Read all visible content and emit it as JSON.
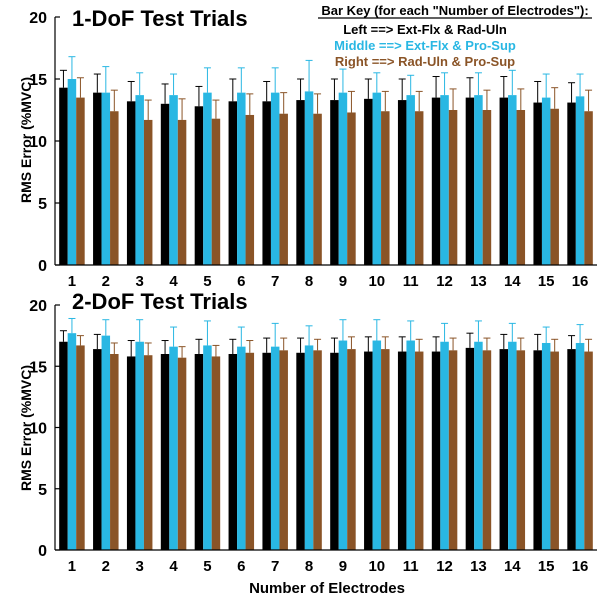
{
  "figure": {
    "bar_key": {
      "title": "Bar Key (for each \"Number of Electrodes\"):",
      "entries": [
        {
          "text": "Left ==> Ext-Flx & Rad-Uln",
          "color": "#000000"
        },
        {
          "text": "Middle ==> Ext-Flx & Pro-Sup",
          "color": "#29b7e3"
        },
        {
          "text": "Right ==> Rad-Uln & Pro-Sup",
          "color": "#8a5427"
        }
      ]
    },
    "xlabel": "Number of Electrodes"
  },
  "chart_data": [
    {
      "type": "bar",
      "title": "1-DoF Test Trials",
      "ylabel": "RMS Error (%MVC)",
      "xlabel": "",
      "ylim": [
        0,
        20
      ],
      "yticks": [
        0,
        5,
        10,
        15,
        20
      ],
      "categories": [
        "1",
        "2",
        "3",
        "4",
        "5",
        "6",
        "7",
        "8",
        "9",
        "10",
        "11",
        "12",
        "13",
        "14",
        "15",
        "16"
      ],
      "series": [
        {
          "name": "Left ==> Ext-Flx & Rad-Uln",
          "color": "#000000",
          "values": [
            14.3,
            13.9,
            13.2,
            13.0,
            12.8,
            13.2,
            13.2,
            13.3,
            13.3,
            13.4,
            13.3,
            13.5,
            13.5,
            13.5,
            13.1,
            13.1
          ],
          "errors": [
            1.4,
            1.5,
            1.6,
            1.6,
            1.6,
            1.8,
            1.6,
            1.7,
            1.7,
            1.6,
            1.7,
            1.7,
            1.6,
            1.7,
            1.7,
            1.6
          ]
        },
        {
          "name": "Middle ==> Ext-Flx & Pro-Sup",
          "color": "#29b7e3",
          "values": [
            15.0,
            13.9,
            13.7,
            13.7,
            13.9,
            13.9,
            13.9,
            14.0,
            13.9,
            13.9,
            13.7,
            13.7,
            13.7,
            13.7,
            13.5,
            13.6
          ],
          "errors": [
            1.8,
            2.1,
            1.8,
            1.7,
            2.0,
            2.0,
            2.0,
            2.5,
            1.9,
            1.6,
            1.6,
            1.8,
            1.8,
            2.0,
            1.9,
            1.8
          ]
        },
        {
          "name": "Right ==> Rad-Uln & Pro-Sup",
          "color": "#8a5427",
          "values": [
            13.5,
            12.4,
            11.7,
            11.7,
            11.8,
            12.1,
            12.2,
            12.2,
            12.3,
            12.4,
            12.4,
            12.5,
            12.5,
            12.5,
            12.6,
            12.4
          ],
          "errors": [
            1.6,
            1.7,
            1.6,
            1.7,
            1.5,
            1.7,
            1.7,
            1.6,
            1.7,
            1.6,
            1.6,
            1.7,
            1.6,
            1.7,
            1.7,
            1.7
          ]
        }
      ]
    },
    {
      "type": "bar",
      "title": "2-DoF Test Trials",
      "ylabel": "RMS Error (%MVC)",
      "xlabel": "Number of Electrodes",
      "ylim": [
        0,
        20
      ],
      "yticks": [
        0,
        5,
        10,
        15,
        20
      ],
      "categories": [
        "1",
        "2",
        "3",
        "4",
        "5",
        "6",
        "7",
        "8",
        "9",
        "10",
        "11",
        "12",
        "13",
        "14",
        "15",
        "16"
      ],
      "series": [
        {
          "name": "Left ==> Ext-Flx & Rad-Uln",
          "color": "#000000",
          "values": [
            17.0,
            16.4,
            15.8,
            16.0,
            16.0,
            16.0,
            16.1,
            16.1,
            16.1,
            16.2,
            16.2,
            16.2,
            16.5,
            16.4,
            16.3,
            16.4
          ],
          "errors": [
            0.9,
            1.2,
            1.3,
            1.1,
            1.2,
            1.2,
            1.2,
            1.2,
            1.2,
            1.2,
            1.2,
            1.2,
            1.2,
            1.2,
            1.3,
            1.1
          ]
        },
        {
          "name": "Middle ==> Ext-Flx & Pro-Sup",
          "color": "#29b7e3",
          "values": [
            17.7,
            17.5,
            17.0,
            16.6,
            16.7,
            16.6,
            16.6,
            16.7,
            17.1,
            17.1,
            17.1,
            17.0,
            17.0,
            17.0,
            16.9,
            16.9
          ],
          "errors": [
            1.2,
            1.3,
            1.8,
            1.6,
            2.0,
            1.6,
            1.9,
            1.6,
            1.7,
            1.7,
            1.6,
            1.5,
            1.7,
            1.5,
            1.3,
            1.5
          ]
        },
        {
          "name": "Right ==> Rad-Uln & Pro-Sup",
          "color": "#8a5427",
          "values": [
            16.7,
            16.0,
            15.9,
            15.7,
            15.8,
            16.1,
            16.3,
            16.3,
            16.4,
            16.4,
            16.2,
            16.3,
            16.3,
            16.3,
            16.2,
            16.2
          ],
          "errors": [
            0.8,
            0.9,
            1.0,
            0.9,
            0.9,
            1.0,
            1.0,
            0.9,
            1.0,
            1.0,
            1.0,
            1.0,
            1.0,
            1.0,
            1.0,
            1.0
          ]
        }
      ]
    }
  ]
}
